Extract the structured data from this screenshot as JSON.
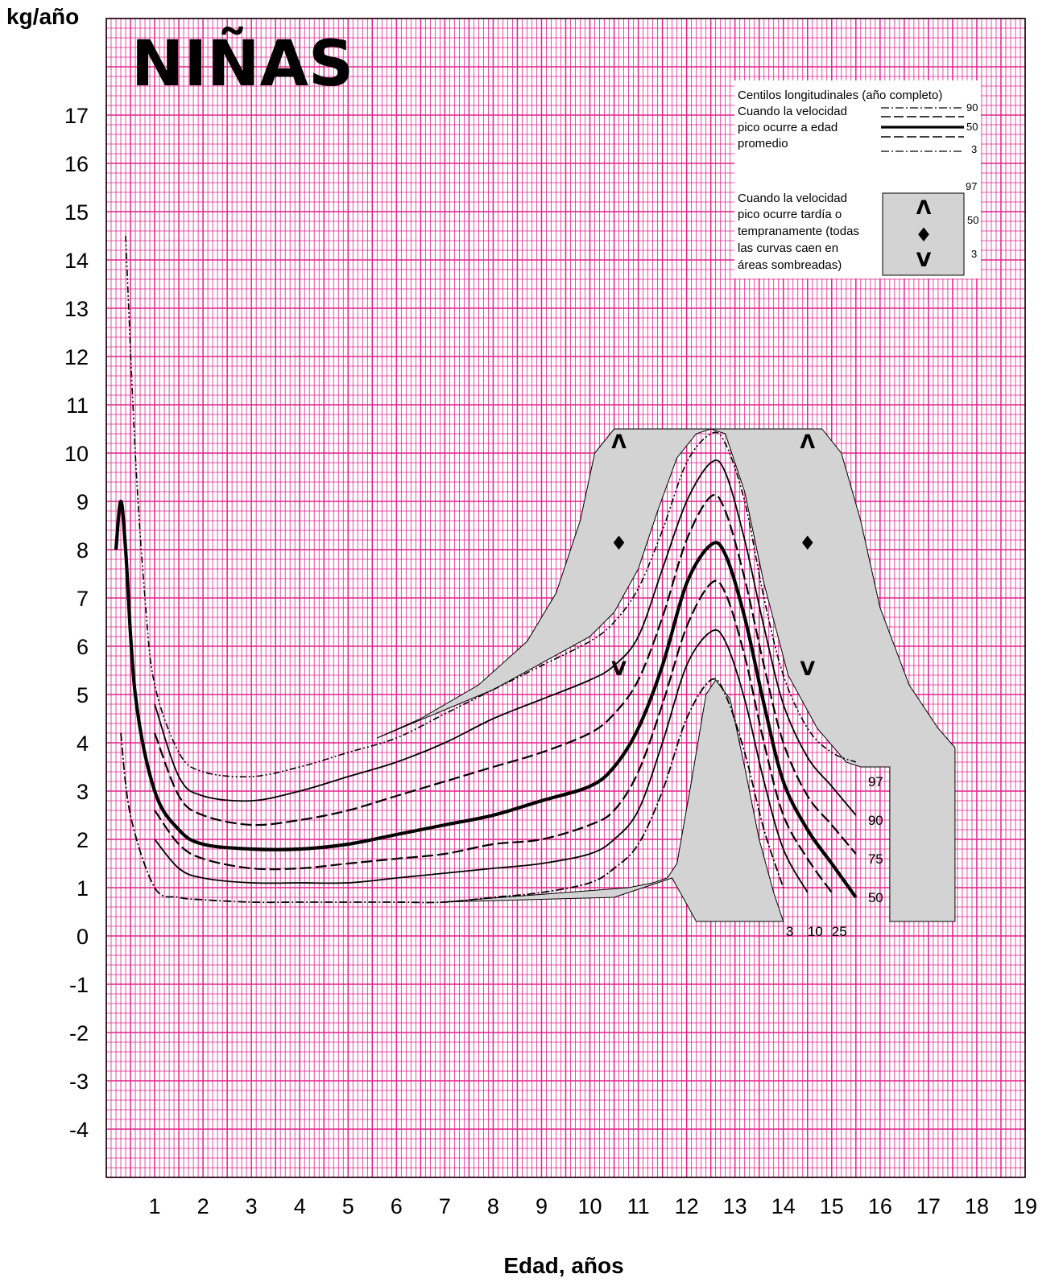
{
  "chart_data": {
    "type": "line",
    "title": "NIÑAS",
    "xlabel": "Edad, años",
    "ylabel": "kg/año",
    "xlim": [
      0,
      19
    ],
    "ylim": [
      -5,
      19
    ],
    "x_ticks": [
      "1",
      "2",
      "3",
      "4",
      "5",
      "6",
      "7",
      "8",
      "9",
      "10",
      "11",
      "12",
      "13",
      "14",
      "15",
      "16",
      "17",
      "18",
      "19"
    ],
    "y_ticks": [
      "17",
      "16",
      "15",
      "14",
      "13",
      "12",
      "11",
      "10",
      "9",
      "8",
      "7",
      "6",
      "5",
      "4",
      "3",
      "2",
      "1",
      "0",
      "-1",
      "-2",
      "-3",
      "-4"
    ],
    "grid": true,
    "grid_color": "#e0248c",
    "shade_color": "#d3d3d3",
    "series": [
      {
        "name": "97",
        "values": [
          [
            0.4,
            14.5
          ],
          [
            0.6,
            10
          ],
          [
            0.8,
            7
          ],
          [
            1.0,
            5.2
          ],
          [
            1.5,
            3.8
          ],
          [
            2.0,
            3.4
          ],
          [
            3.0,
            3.3
          ],
          [
            4.0,
            3.5
          ],
          [
            5.0,
            3.8
          ],
          [
            6.0,
            4.1
          ],
          [
            7.0,
            4.6
          ],
          [
            8.0,
            5.1
          ],
          [
            9.0,
            5.6
          ],
          [
            10.0,
            6.1
          ],
          [
            10.5,
            6.5
          ],
          [
            11.0,
            7.2
          ],
          [
            11.5,
            8.4
          ],
          [
            12.0,
            9.8
          ],
          [
            12.5,
            10.4
          ],
          [
            12.8,
            10.2
          ],
          [
            13.2,
            9.0
          ],
          [
            13.6,
            7.0
          ],
          [
            14.0,
            5.4
          ],
          [
            14.5,
            4.3
          ],
          [
            15.0,
            3.8
          ],
          [
            15.5,
            3.6
          ]
        ]
      },
      {
        "name": "90",
        "values": [
          [
            1.0,
            4.8
          ],
          [
            1.5,
            3.3
          ],
          [
            2.0,
            2.9
          ],
          [
            3.0,
            2.8
          ],
          [
            4.0,
            3.0
          ],
          [
            5.0,
            3.3
          ],
          [
            6.0,
            3.6
          ],
          [
            7.0,
            4.0
          ],
          [
            8.0,
            4.5
          ],
          [
            9.0,
            4.9
          ],
          [
            10.0,
            5.3
          ],
          [
            10.5,
            5.6
          ],
          [
            11.0,
            6.2
          ],
          [
            11.5,
            7.6
          ],
          [
            12.0,
            9.0
          ],
          [
            12.5,
            9.8
          ],
          [
            12.8,
            9.6
          ],
          [
            13.2,
            8.2
          ],
          [
            13.6,
            6.4
          ],
          [
            14.0,
            4.8
          ],
          [
            14.5,
            3.7
          ],
          [
            15.0,
            3.1
          ],
          [
            15.5,
            2.5
          ]
        ]
      },
      {
        "name": "75",
        "values": [
          [
            1.0,
            4.2
          ],
          [
            1.5,
            2.9
          ],
          [
            2.0,
            2.5
          ],
          [
            3.0,
            2.3
          ],
          [
            4.0,
            2.4
          ],
          [
            5.0,
            2.6
          ],
          [
            6.0,
            2.9
          ],
          [
            7.0,
            3.2
          ],
          [
            8.0,
            3.5
          ],
          [
            9.0,
            3.8
          ],
          [
            10.0,
            4.2
          ],
          [
            10.5,
            4.6
          ],
          [
            11.0,
            5.3
          ],
          [
            11.5,
            6.6
          ],
          [
            12.0,
            8.2
          ],
          [
            12.5,
            9.1
          ],
          [
            12.8,
            8.8
          ],
          [
            13.2,
            7.4
          ],
          [
            13.6,
            5.6
          ],
          [
            14.0,
            4.0
          ],
          [
            14.5,
            2.9
          ],
          [
            15.0,
            2.3
          ],
          [
            15.5,
            1.7
          ]
        ]
      },
      {
        "name": "50",
        "values": [
          [
            0.2,
            8.0
          ],
          [
            0.3,
            9.0
          ],
          [
            0.4,
            8.0
          ],
          [
            0.6,
            5.0
          ],
          [
            1.0,
            3.0
          ],
          [
            1.5,
            2.2
          ],
          [
            2.0,
            1.9
          ],
          [
            3.0,
            1.8
          ],
          [
            4.0,
            1.8
          ],
          [
            5.0,
            1.9
          ],
          [
            6.0,
            2.1
          ],
          [
            7.0,
            2.3
          ],
          [
            8.0,
            2.5
          ],
          [
            9.0,
            2.8
          ],
          [
            10.0,
            3.1
          ],
          [
            10.5,
            3.5
          ],
          [
            11.0,
            4.3
          ],
          [
            11.5,
            5.6
          ],
          [
            12.0,
            7.3
          ],
          [
            12.5,
            8.1
          ],
          [
            12.8,
            7.9
          ],
          [
            13.2,
            6.6
          ],
          [
            13.6,
            4.8
          ],
          [
            14.0,
            3.2
          ],
          [
            14.5,
            2.2
          ],
          [
            15.0,
            1.5
          ],
          [
            15.5,
            0.8
          ]
        ]
      },
      {
        "name": "25",
        "values": [
          [
            1.0,
            2.6
          ],
          [
            1.5,
            1.9
          ],
          [
            2.0,
            1.6
          ],
          [
            3.0,
            1.4
          ],
          [
            4.0,
            1.4
          ],
          [
            5.0,
            1.5
          ],
          [
            6.0,
            1.6
          ],
          [
            7.0,
            1.7
          ],
          [
            8.0,
            1.9
          ],
          [
            9.0,
            2.0
          ],
          [
            10.0,
            2.3
          ],
          [
            10.5,
            2.6
          ],
          [
            11.0,
            3.4
          ],
          [
            11.5,
            4.8
          ],
          [
            12.0,
            6.4
          ],
          [
            12.5,
            7.3
          ],
          [
            12.8,
            7.1
          ],
          [
            13.2,
            5.8
          ],
          [
            13.6,
            4.0
          ],
          [
            14.0,
            2.5
          ],
          [
            14.5,
            1.6
          ],
          [
            15.0,
            0.9
          ]
        ]
      },
      {
        "name": "10",
        "values": [
          [
            1.0,
            2.0
          ],
          [
            1.5,
            1.4
          ],
          [
            2.0,
            1.2
          ],
          [
            3.0,
            1.1
          ],
          [
            4.0,
            1.1
          ],
          [
            5.0,
            1.1
          ],
          [
            6.0,
            1.2
          ],
          [
            7.0,
            1.3
          ],
          [
            8.0,
            1.4
          ],
          [
            9.0,
            1.5
          ],
          [
            10.0,
            1.7
          ],
          [
            10.5,
            2.0
          ],
          [
            11.0,
            2.6
          ],
          [
            11.5,
            4.0
          ],
          [
            12.0,
            5.6
          ],
          [
            12.5,
            6.3
          ],
          [
            12.8,
            6.1
          ],
          [
            13.2,
            4.9
          ],
          [
            13.6,
            3.2
          ],
          [
            14.0,
            1.8
          ],
          [
            14.5,
            0.9
          ]
        ]
      },
      {
        "name": "3",
        "values": [
          [
            0.3,
            4.2
          ],
          [
            0.5,
            2.5
          ],
          [
            1.0,
            1.0
          ],
          [
            1.5,
            0.8
          ],
          [
            2.0,
            0.75
          ],
          [
            3.0,
            0.7
          ],
          [
            4.0,
            0.7
          ],
          [
            5.0,
            0.7
          ],
          [
            6.0,
            0.7
          ],
          [
            7.0,
            0.7
          ],
          [
            8.0,
            0.8
          ],
          [
            9.0,
            0.9
          ],
          [
            10.0,
            1.1
          ],
          [
            10.5,
            1.4
          ],
          [
            11.0,
            1.9
          ],
          [
            11.5,
            3.0
          ],
          [
            12.0,
            4.5
          ],
          [
            12.5,
            5.3
          ],
          [
            12.8,
            5.0
          ],
          [
            13.2,
            3.8
          ],
          [
            13.6,
            2.2
          ],
          [
            14.0,
            1.0
          ]
        ]
      }
    ],
    "curve_labels_right": [
      "97",
      "90",
      "75",
      "50"
    ],
    "curve_labels_bottom": [
      "3",
      "10",
      "25"
    ],
    "markers": {
      "up": "Λ",
      "mid": "♦",
      "down": "V"
    }
  },
  "legend": {
    "title": "Centilos longitudinales (año completo)",
    "avg_lines": [
      "Cuando la velocidad",
      "pico ocurre a edad",
      "promedio"
    ],
    "avg_nums": [
      "90",
      "50",
      "3"
    ],
    "shaded_lines": [
      "Cuando la velocidad",
      "pico ocurre tardía o",
      "tempranamente (todas",
      "las curvas caen en",
      "áreas sombreadas)"
    ],
    "shaded_nums": [
      "97",
      "50",
      "3"
    ]
  }
}
